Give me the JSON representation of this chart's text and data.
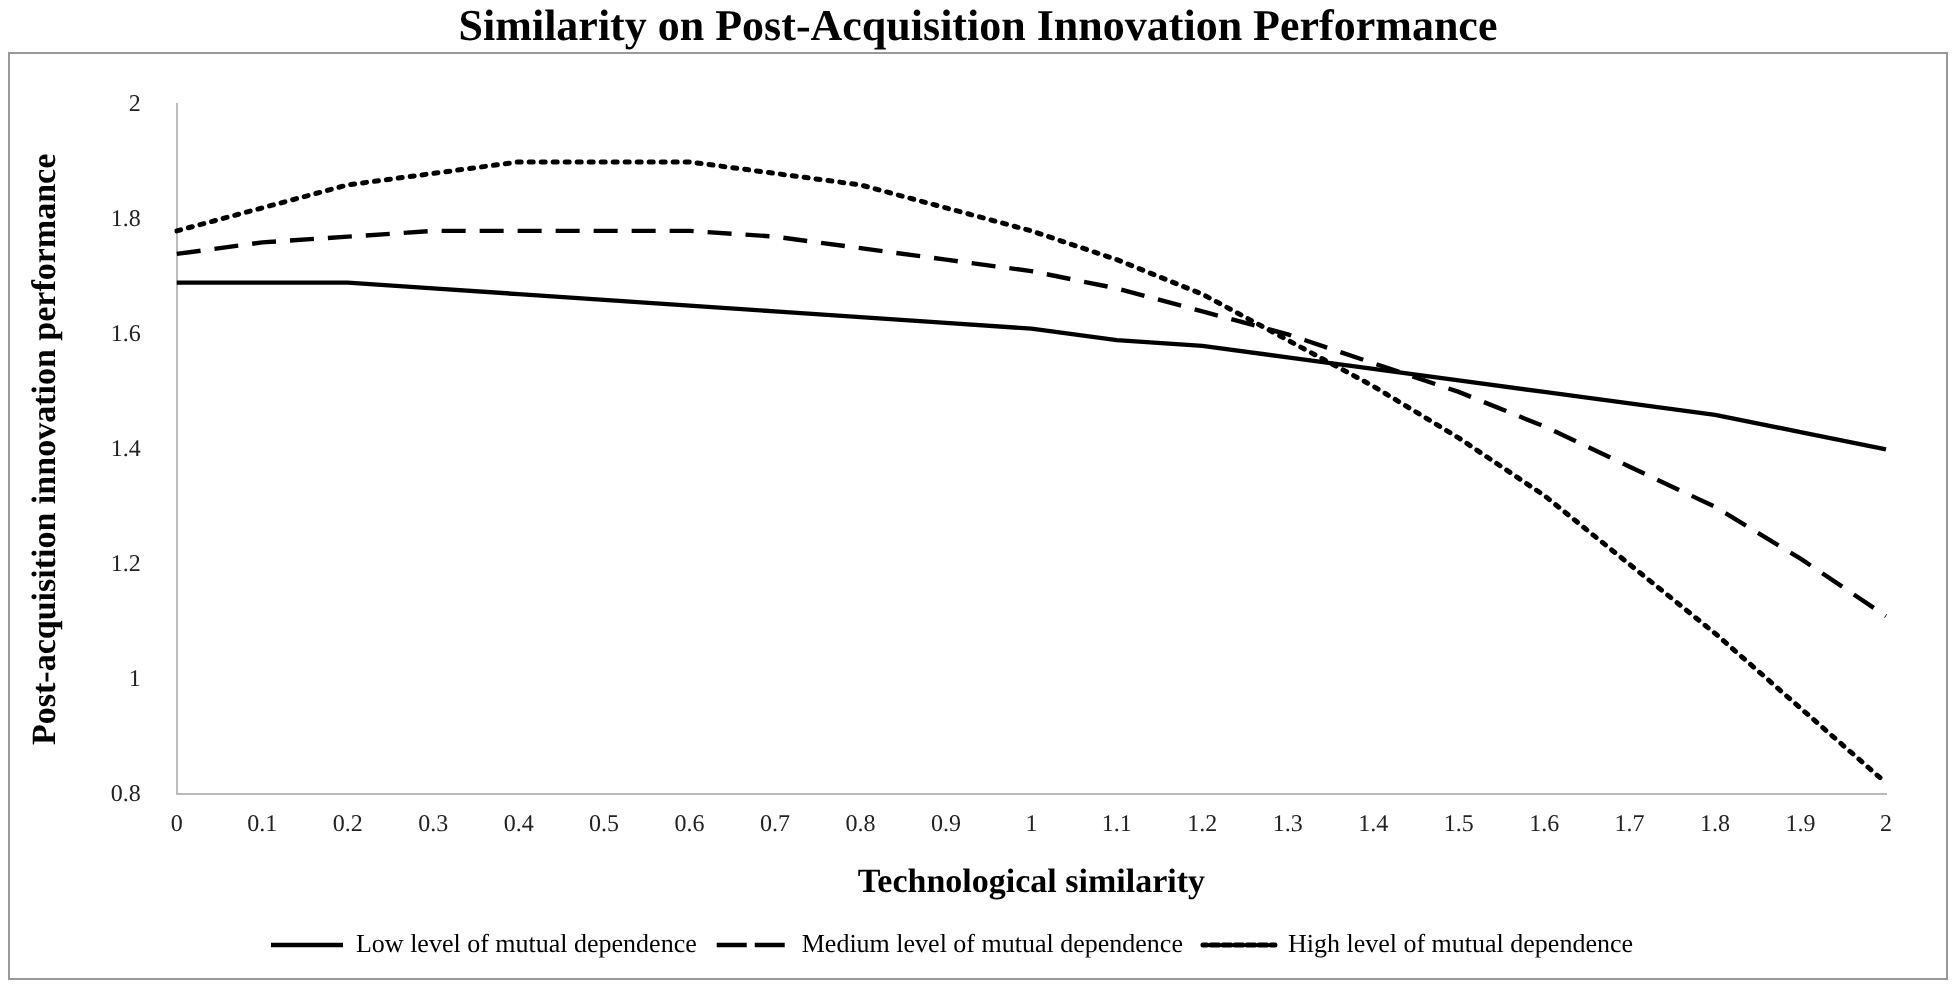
{
  "chart_data": {
    "type": "line",
    "title": "Similarity on Post-Acquisition Innovation Performance",
    "xlabel": "Technological similarity",
    "ylabel": "Post-acquisition innovation performance",
    "categories": [
      "0",
      "0.1",
      "0.2",
      "0.3",
      "0.4",
      "0.5",
      "0.6",
      "0.7",
      "0.8",
      "0.9",
      "1",
      "1.1",
      "1.2",
      "1.3",
      "1.4",
      "1.5",
      "1.6",
      "1.7",
      "1.8",
      "1.9",
      "2"
    ],
    "series": [
      {
        "name": "Low level of mutual dependence",
        "color": "#000000",
        "line_style": "solid",
        "values": [
          1.69,
          1.69,
          1.69,
          1.68,
          1.67,
          1.66,
          1.65,
          1.64,
          1.63,
          1.62,
          1.61,
          1.59,
          1.58,
          1.56,
          1.54,
          1.52,
          1.5,
          1.48,
          1.46,
          1.43,
          1.4
        ]
      },
      {
        "name": "Medium level of mutual dependence",
        "color": "#000000",
        "line_style": "dashed",
        "values": [
          1.74,
          1.76,
          1.77,
          1.78,
          1.78,
          1.78,
          1.78,
          1.77,
          1.75,
          1.73,
          1.71,
          1.68,
          1.64,
          1.6,
          1.55,
          1.5,
          1.44,
          1.37,
          1.3,
          1.21,
          1.11
        ]
      },
      {
        "name": "High level of mutual dependence",
        "color": "#000000",
        "line_style": "dotted",
        "values": [
          1.78,
          1.82,
          1.86,
          1.88,
          1.9,
          1.9,
          1.9,
          1.88,
          1.86,
          1.82,
          1.78,
          1.73,
          1.67,
          1.59,
          1.51,
          1.42,
          1.32,
          1.2,
          1.08,
          0.95,
          0.82
        ]
      }
    ],
    "ylim": [
      0.8,
      2
    ],
    "yticks": [
      0.8,
      1,
      1.2,
      1.4,
      1.6,
      1.8,
      2
    ],
    "grid": false,
    "legend": "bottom",
    "marker": "none"
  }
}
